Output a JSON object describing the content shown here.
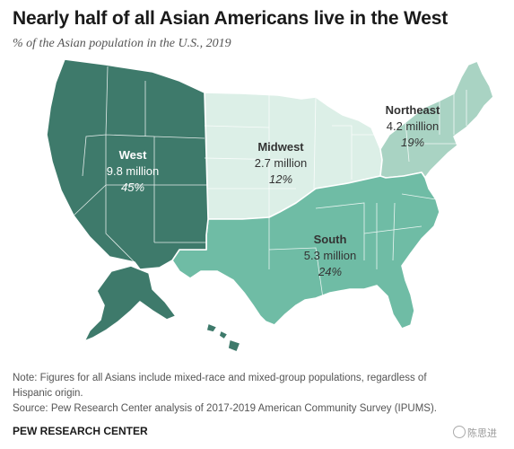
{
  "title": "Nearly half of all Asian Americans live in the West",
  "subtitle": "% of the Asian population in the U.S., 2019",
  "colors": {
    "west": "#3e7a6b",
    "midwest": "#dcefe7",
    "northeast": "#a9d3c3",
    "south": "#6fbca5",
    "boundary": "#ffffff"
  },
  "regions": {
    "west": {
      "name": "West",
      "value": "9.8 million",
      "pct": "45%"
    },
    "midwest": {
      "name": "Midwest",
      "value": "2.7 million",
      "pct": "12%"
    },
    "northeast": {
      "name": "Northeast",
      "value": "4.2 million",
      "pct": "19%"
    },
    "south": {
      "name": "South",
      "value": "5.3 million",
      "pct": "24%"
    }
  },
  "note": {
    "line1": "Note: Figures for all Asians include mixed-race and mixed-group populations, regardless of",
    "line2": "Hispanic origin.",
    "source": "Source: Pew Research Center analysis of 2017-2019 American Community Survey (IPUMS)."
  },
  "brand": "PEW RESEARCH CENTER",
  "watermark": "陈思进"
}
